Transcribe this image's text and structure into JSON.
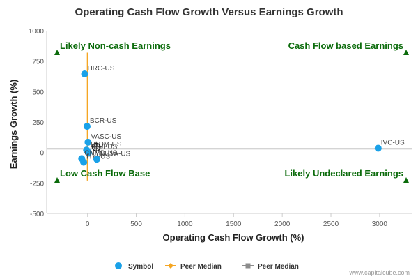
{
  "chart_data": {
    "type": "scatter",
    "title": "Operating Cash Flow Growth Versus Earnings Growth",
    "xlabel": "Operating Cash Flow Growth (%)",
    "ylabel": "Earnings Growth (%)",
    "xlim": [
      -420,
      3330
    ],
    "ylim": [
      -500,
      1000
    ],
    "x_ticks": [
      0,
      500,
      1000,
      1500,
      2000,
      2500,
      3000
    ],
    "y_ticks": [
      -500,
      -250,
      0,
      250,
      500,
      750,
      1000
    ],
    "grid": false,
    "series": [
      {
        "name": "Symbol",
        "color": "#1aa1e8",
        "points": [
          {
            "label": "HRC-US",
            "x": -30,
            "y": 645
          },
          {
            "label": "BCR-US",
            "x": -5,
            "y": 215
          },
          {
            "label": "VASC-US",
            "x": 5,
            "y": 85
          },
          {
            "label": "TNDM-US",
            "x": -10,
            "y": 20
          },
          {
            "label": "ICUI-US",
            "x": 10,
            "y": 0
          },
          {
            "label": "CNMD-US",
            "x": -60,
            "y": -50
          },
          {
            "label": "HYI-US",
            "x": -40,
            "y": -80
          },
          {
            "label": "NUVA-US",
            "x": 95,
            "y": -55
          },
          {
            "label": "IVC-US",
            "x": 2985,
            "y": 35
          }
        ]
      },
      {
        "name": "Peer Median",
        "color": "#f5a623",
        "x": 0,
        "y_range": [
          -230,
          820
        ]
      },
      {
        "name": "Peer Median",
        "color": "#8c8c8c",
        "y": 30
      }
    ],
    "highlight": {
      "x": 90,
      "y": 45
    },
    "quadrant_labels": [
      {
        "text": "Likely Non-cash Earnings",
        "pos": "top-left"
      },
      {
        "text": "Cash Flow based Earnings",
        "pos": "top-right"
      },
      {
        "text": "Low Cash Flow Base",
        "pos": "bottom-left"
      },
      {
        "text": "Likely Undeclared Earnings",
        "pos": "bottom-right"
      }
    ],
    "legend": {
      "placement": "bottom-center",
      "items": [
        "Symbol",
        "Peer Median",
        "Peer Median"
      ]
    },
    "credit": "www.capitalcube.com",
    "colors": {
      "marker": "#1aa1e8",
      "quad_text": "#0b6b0b",
      "triangle": "#0b6b0b"
    }
  }
}
